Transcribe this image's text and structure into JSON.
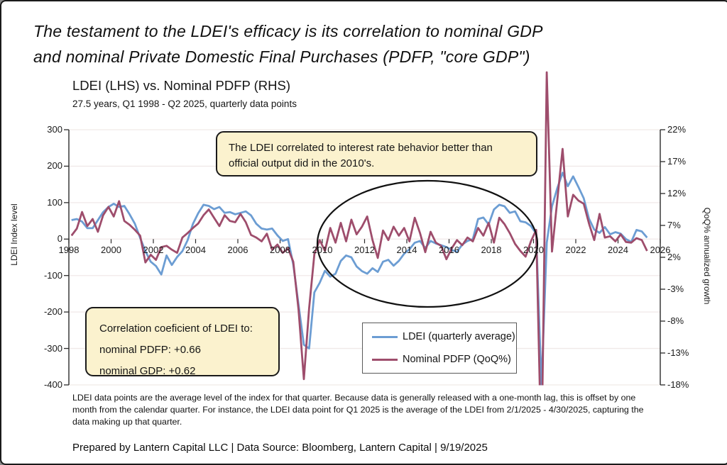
{
  "header": {
    "title_line1": "The testament to the LDEI's efficacy is its correlation to nominal GDP",
    "title_line2": "and nominal Private Domestic Final Purchases (PDFP, \"core GDP\")"
  },
  "colors": {
    "ldei_line": "#6C9DD3",
    "pdfp_line": "#9E4D6C",
    "annotation_bg": "#FBF2CE",
    "grid": "#F0E9E8",
    "axis": "#2b2b2b"
  },
  "chart_data": {
    "type": "line",
    "title": "LDEI (LHS) vs. Nominal PDFP (RHS)",
    "subtitle": "27.5 years, Q1 1998 - Q2 2025, quarterly data points",
    "x_range": "Q1 1998 - Q2 2025, quarterly",
    "x_tick_labels": [
      "1998",
      "2000",
      "2002",
      "2004",
      "2006",
      "2008",
      "2010",
      "2012",
      "2014",
      "2016",
      "2018",
      "2020",
      "2022",
      "2024",
      "2026"
    ],
    "left_axis": {
      "title": "LDEI Index level",
      "max": 300,
      "min": -400,
      "ticks": [
        "300",
        "200",
        "100",
        "0",
        "-100",
        "-200",
        "-300",
        "-400"
      ]
    },
    "right_axis": {
      "title": "QoQ% annualized growth",
      "max": 22,
      "min": -18,
      "ticks": [
        "22%",
        "17%",
        "12%",
        "7%",
        "2%",
        "-3%",
        "-8%",
        "-13%",
        "-18%"
      ]
    },
    "series": [
      {
        "name": "LDEI (quarterly average)",
        "axis": "left",
        "color": "#6C9DD3",
        "values": [
          52,
          55,
          48,
          30,
          30,
          52,
          74,
          88,
          97,
          88,
          91,
          68,
          42,
          3,
          -33,
          -62,
          -74,
          -97,
          -45,
          -71,
          -49,
          -33,
          -3,
          42,
          71,
          94,
          91,
          82,
          88,
          72,
          74,
          68,
          72,
          76,
          65,
          42,
          29,
          26,
          29,
          10,
          -5,
          0,
          -70,
          -180,
          -290,
          -300,
          -146,
          -120,
          -87,
          -103,
          -95,
          -60,
          -45,
          -50,
          -75,
          -88,
          -95,
          -80,
          -90,
          -62,
          -57,
          -73,
          -60,
          -40,
          -28,
          -10,
          -5,
          -25,
          -5,
          -12,
          -17,
          -22,
          -30,
          -35,
          -15,
          -5,
          0,
          55,
          59,
          40,
          81,
          94,
          90,
          72,
          76,
          49,
          46,
          36,
          15,
          -405,
          -10,
          90,
          140,
          182,
          145,
          172,
          143,
          112,
          56,
          26,
          17,
          33,
          13,
          19,
          15,
          0,
          -8,
          25,
          21,
          4
        ]
      },
      {
        "name": "Nominal PDFP (QoQ%)",
        "axis": "right",
        "color": "#9E4D6C",
        "values": [
          5.4,
          6.5,
          9.1,
          6.9,
          8.0,
          6.0,
          8.6,
          9.9,
          8.4,
          10.8,
          7.7,
          7.1,
          6.3,
          5.4,
          1.2,
          2.4,
          1.6,
          3.6,
          3.8,
          3.2,
          2.7,
          5.1,
          5.8,
          6.6,
          7.3,
          8.6,
          9.5,
          8.2,
          6.9,
          8.6,
          7.7,
          7.5,
          8.8,
          7.5,
          5.5,
          5.1,
          4.5,
          5.7,
          3.2,
          4.0,
          2.7,
          3.4,
          1.3,
          -6.2,
          -17.1,
          -6.0,
          2.5,
          4.7,
          3.0,
          6.6,
          4.3,
          7.4,
          4.5,
          7.9,
          5.6,
          6.8,
          8.4,
          4.7,
          1.9,
          6.2,
          4.7,
          6.8,
          5.4,
          6.6,
          4.5,
          8.2,
          5.8,
          2.8,
          6.0,
          4.3,
          3.8,
          1.7,
          3.4,
          4.7,
          3.9,
          5.1,
          4.5,
          6.6,
          5.4,
          7.4,
          4.3,
          8.2,
          7.2,
          5.8,
          4.1,
          3.0,
          2.1,
          4.5,
          6.3,
          -30,
          31,
          2.9,
          11,
          19,
          8.4,
          11.8,
          10.9,
          10.4,
          7.3,
          4.7,
          8.8,
          5.1,
          5.3,
          4.5,
          5.6,
          4.4,
          4.3,
          5.0,
          4.7,
          3.0
        ]
      }
    ],
    "annotations": {
      "callout": "The LDEI correlated to interest rate behavior better than official output did in the 2010's.",
      "correlation_box": [
        "Correlation coeficient of LDEI to:",
        "nominal PDFP: +0.66",
        "nominal GDP: +0.62"
      ],
      "ellipse_region": "circled area highlighting 2010-2019"
    },
    "legend_position": "bottom-center"
  },
  "footer": {
    "note": "LDEI data points are the average level of the index for that quarter. Because data is generally released with a one-month lag, this is offset by one month from the calendar quarter. For instance, the LDEI data point for Q1 2025 is the average of the LDEI from 2/1/2025 - 4/30/2025, capturing the data making up that quarter.",
    "prepared": "Prepared by Lantern Capital LLC | Data Source: Bloomberg, Lantern Capital | 9/19/2025"
  }
}
